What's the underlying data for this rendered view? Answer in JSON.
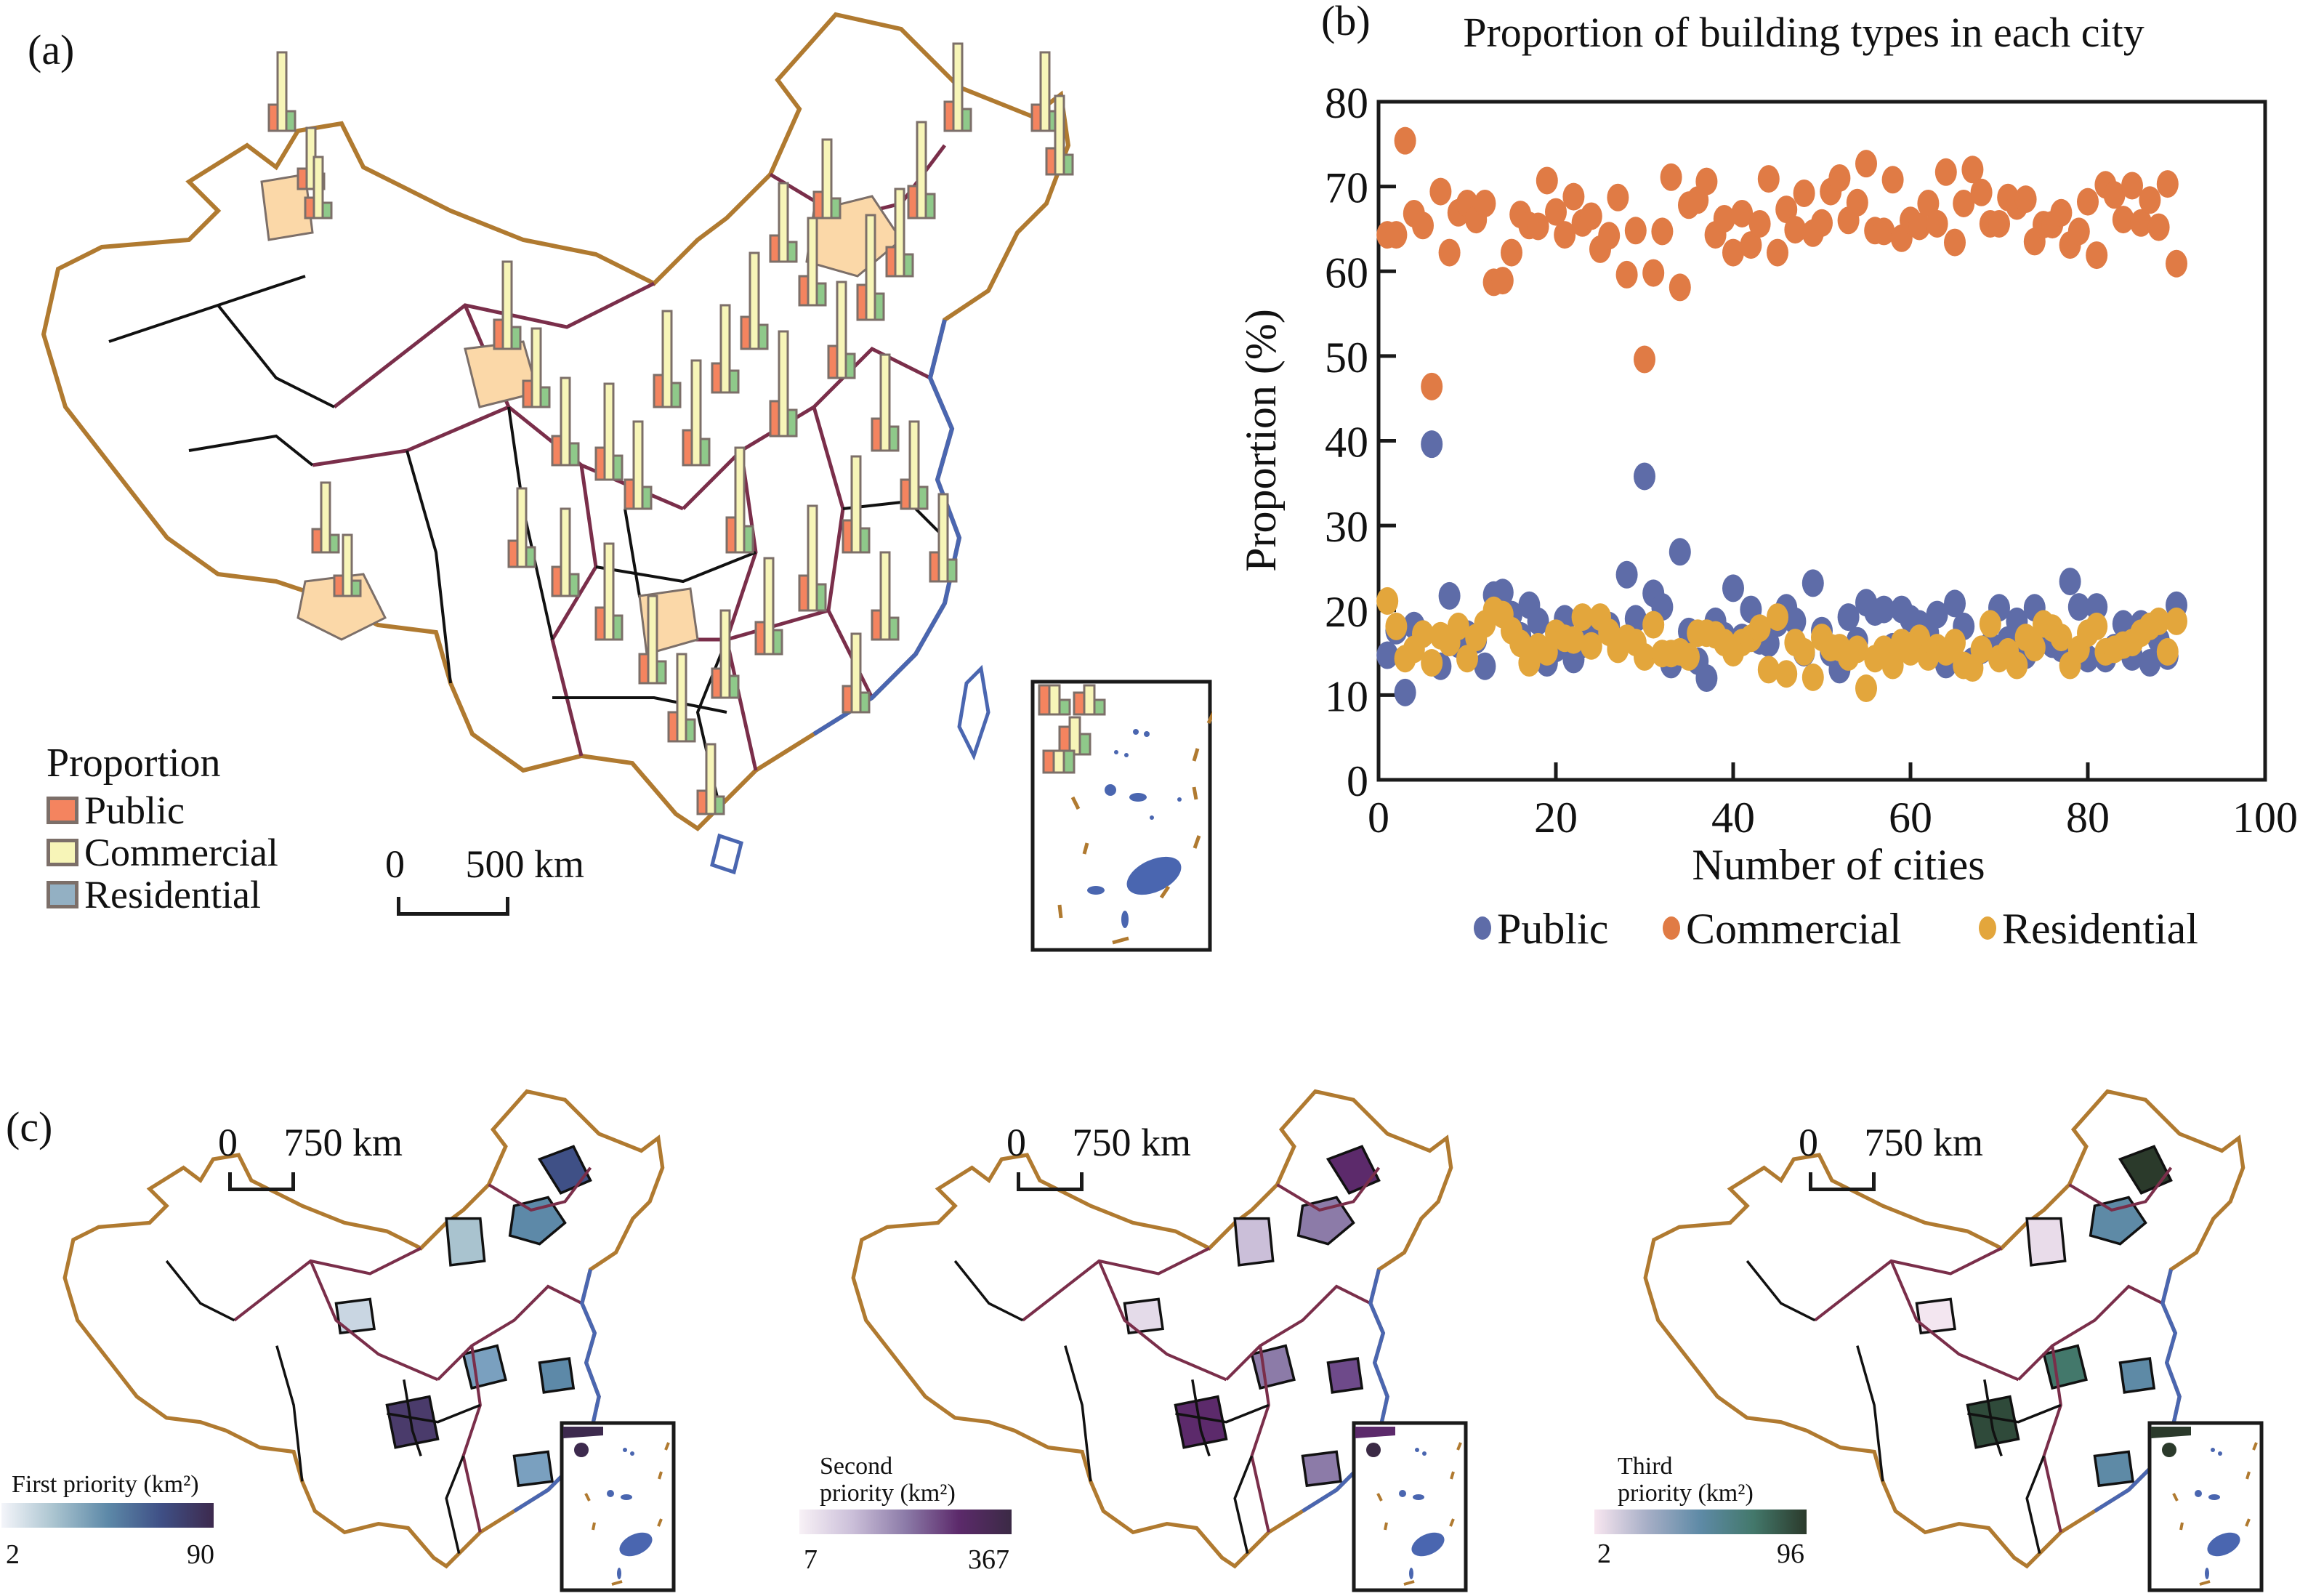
{
  "panel_a": {
    "label": "(a)",
    "legend": {
      "title": "Proportion",
      "items": [
        {
          "label": "Public",
          "color": "#f4845f"
        },
        {
          "label": "Commercial",
          "color": "#f7f5b8"
        },
        {
          "label": "Residential",
          "color": "#93b0c3"
        }
      ]
    },
    "scale_bar": {
      "start": "0",
      "end": "500 km"
    },
    "colors": {
      "country_border": "#b07a30",
      "province_border": "#7a2e4a",
      "city_border": "#111111",
      "coast": "#4a66b0",
      "highlight_fill": "#fbd8a8",
      "bar_outline": "#7c6f69",
      "bar_public": "#f4845f",
      "bar_commercial": "#f7f5b8",
      "bar_residential": "#8fc98a"
    }
  },
  "panel_b": {
    "label": "(b)"
  },
  "chart_data": {
    "type": "scatter",
    "title": "Proportion of building types in each city",
    "xlabel": "Number of cities",
    "ylabel": "Proportion (%)",
    "xlim": [
      0,
      100
    ],
    "ylim": [
      0,
      80
    ],
    "xticks": [
      "0",
      "20",
      "40",
      "60",
      "80",
      "100"
    ],
    "yticks": [
      "0",
      "10",
      "20",
      "30",
      "40",
      "50",
      "60",
      "70",
      "80"
    ],
    "grid": false,
    "legend_position": "bottom",
    "series": [
      {
        "name": "Public",
        "color": "#5e6ca8",
        "x": [
          1,
          2,
          3,
          4,
          5,
          6,
          7,
          8,
          9,
          10,
          11,
          12,
          13,
          14,
          15,
          16,
          17,
          18,
          19,
          20,
          21,
          22,
          23,
          24,
          25,
          26,
          27,
          28,
          29,
          30,
          31,
          32,
          33,
          34,
          35,
          36,
          37,
          38,
          39,
          40,
          41,
          42,
          43,
          44,
          45,
          46,
          47,
          48,
          49,
          50,
          51,
          52,
          53,
          54,
          55,
          56,
          57,
          58,
          59,
          60,
          61,
          62,
          63,
          64,
          65,
          66,
          67,
          68,
          69,
          70,
          71,
          72,
          73,
          74,
          75,
          76,
          77,
          78,
          79,
          80,
          81,
          82,
          83,
          84,
          85,
          86,
          87,
          88,
          89,
          90
        ],
        "values": [
          14.7,
          17.6,
          10.3,
          18.2,
          17.2,
          39.6,
          13.4,
          21.7,
          16.0,
          17.2,
          16.5,
          13.4,
          21.8,
          22.1,
          19.5,
          17.0,
          20.6,
          18.7,
          13.8,
          15.5,
          19.0,
          14.2,
          16.0,
          17.9,
          18.0,
          18.2,
          16.0,
          24.2,
          19.0,
          35.8,
          22.0,
          20.4,
          13.6,
          26.9,
          17.5,
          14.0,
          12.0,
          18.7,
          17.0,
          22.6,
          16.8,
          20.1,
          16.4,
          16.1,
          18.5,
          20.3,
          18.7,
          15.0,
          23.2,
          17.6,
          15.0,
          13.0,
          19.2,
          16.4,
          20.9,
          19.8,
          20.1,
          15.7,
          20.1,
          19.0,
          18.4,
          17.3,
          19.5,
          13.6,
          20.8,
          18.1,
          14.0,
          15.3,
          15.9,
          20.3,
          16.5,
          18.7,
          14.7,
          20.3,
          17.0,
          16.0,
          15.5,
          23.4,
          20.4,
          14.3,
          20.4,
          14.3,
          15.6,
          18.4,
          14.5,
          18.4,
          13.8,
          16.5,
          14.6,
          20.6
        ]
      },
      {
        "name": "Commercial",
        "color": "#e07b45",
        "x": [
          1,
          2,
          3,
          4,
          5,
          6,
          7,
          8,
          9,
          10,
          11,
          12,
          13,
          14,
          15,
          16,
          17,
          18,
          19,
          20,
          21,
          22,
          23,
          24,
          25,
          26,
          27,
          28,
          29,
          30,
          31,
          32,
          33,
          34,
          35,
          36,
          37,
          38,
          39,
          40,
          41,
          42,
          43,
          44,
          45,
          46,
          47,
          48,
          49,
          50,
          51,
          52,
          53,
          54,
          55,
          56,
          57,
          58,
          59,
          60,
          61,
          62,
          63,
          64,
          65,
          66,
          67,
          68,
          69,
          70,
          71,
          72,
          73,
          74,
          75,
          76,
          77,
          78,
          79,
          80,
          81,
          82,
          83,
          84,
          85,
          86,
          87,
          88,
          89,
          90
        ],
        "values": [
          64.3,
          64.3,
          75.4,
          66.8,
          65.4,
          46.4,
          69.4,
          62.2,
          66.9,
          68.0,
          66.1,
          68.0,
          58.7,
          58.9,
          62.2,
          66.7,
          65.4,
          65.3,
          70.7,
          67.0,
          64.3,
          68.8,
          65.7,
          66.5,
          62.6,
          64.2,
          68.7,
          59.6,
          64.8,
          49.6,
          59.8,
          64.7,
          71.1,
          58.1,
          67.8,
          68.4,
          70.6,
          64.3,
          66.2,
          62.2,
          66.8,
          63.1,
          65.6,
          70.9,
          62.2,
          67.3,
          64.9,
          69.2,
          64.5,
          65.7,
          69.4,
          71.0,
          66.0,
          68.1,
          72.7,
          64.8,
          64.7,
          70.8,
          63.9,
          66.0,
          65.3,
          68.0,
          65.6,
          71.7,
          63.4,
          68.0,
          72.0,
          69.3,
          65.6,
          65.6,
          68.7,
          67.7,
          68.5,
          63.5,
          65.5,
          65.5,
          66.9,
          63.1,
          64.7,
          68.2,
          61.9,
          70.2,
          69.0,
          66.1,
          70.1,
          65.7,
          68.4,
          65.2,
          70.3,
          60.9
        ]
      },
      {
        "name": "Residential",
        "color": "#e3a63c",
        "x": [
          1,
          2,
          3,
          4,
          5,
          6,
          7,
          8,
          9,
          10,
          11,
          12,
          13,
          14,
          15,
          16,
          17,
          18,
          19,
          20,
          21,
          22,
          23,
          24,
          25,
          26,
          27,
          28,
          29,
          30,
          31,
          32,
          33,
          34,
          35,
          36,
          37,
          38,
          39,
          40,
          41,
          42,
          43,
          44,
          45,
          46,
          47,
          48,
          49,
          50,
          51,
          52,
          53,
          54,
          55,
          56,
          57,
          58,
          59,
          60,
          61,
          62,
          63,
          64,
          65,
          66,
          67,
          68,
          69,
          70,
          71,
          72,
          73,
          74,
          75,
          76,
          77,
          78,
          79,
          80,
          81,
          82,
          83,
          84,
          85,
          86,
          87,
          88,
          89,
          90
        ],
        "values": [
          21.1,
          18.1,
          14.3,
          15.4,
          17.2,
          13.8,
          17.0,
          16.2,
          18.1,
          14.3,
          16.8,
          18.4,
          20.0,
          19.5,
          17.6,
          16.1,
          13.8,
          15.7,
          15.1,
          17.3,
          16.7,
          16.5,
          19.2,
          15.8,
          19.2,
          17.4,
          15.4,
          16.7,
          16.2,
          14.5,
          18.3,
          14.9,
          14.9,
          15.1,
          14.5,
          17.3,
          17.3,
          17.1,
          16.2,
          15.0,
          16.2,
          16.7,
          17.9,
          13.0,
          19.2,
          12.5,
          16.2,
          15.1,
          12.1,
          16.8,
          15.6,
          15.6,
          14.5,
          15.4,
          10.8,
          14.3,
          15.4,
          13.5,
          16.2,
          15.1,
          16.7,
          14.5,
          15.6,
          15.1,
          16.2,
          13.5,
          13.2,
          15.4,
          18.4,
          14.3,
          15.1,
          13.5,
          16.8,
          15.6,
          18.4,
          17.9,
          16.8,
          13.5,
          15.4,
          17.3,
          18.1,
          15.1,
          15.4,
          15.9,
          16.2,
          17.3,
          18.1,
          18.7,
          15.1,
          18.7
        ]
      }
    ]
  },
  "panel_c": {
    "label": "(c)",
    "maps": [
      {
        "scale_start": "0",
        "scale_end": "750 km",
        "legend_title": "First priority (km²)",
        "min": "2",
        "max": "90",
        "ramp": [
          "#f4f5fa",
          "#a9c3cf",
          "#5d89a8",
          "#3f5086",
          "#3d2a4e"
        ]
      },
      {
        "scale_start": "0",
        "scale_end": "750 km",
        "legend_title_line1": "Second",
        "legend_title_line2": "priority (km²)",
        "min": "7",
        "max": "367",
        "ramp": [
          "#f8f1f6",
          "#cbbfd9",
          "#8c7ba8",
          "#5c2a6b",
          "#3b2a45"
        ]
      },
      {
        "scale_start": "0",
        "scale_end": "750 km",
        "legend_title_line1": "Third",
        "legend_title_line2": "priority (km²)",
        "min": "2",
        "max": "96",
        "ramp": [
          "#f8e6f0",
          "#a6aec6",
          "#5e8aa6",
          "#43786b",
          "#2b3a2b"
        ]
      }
    ]
  }
}
